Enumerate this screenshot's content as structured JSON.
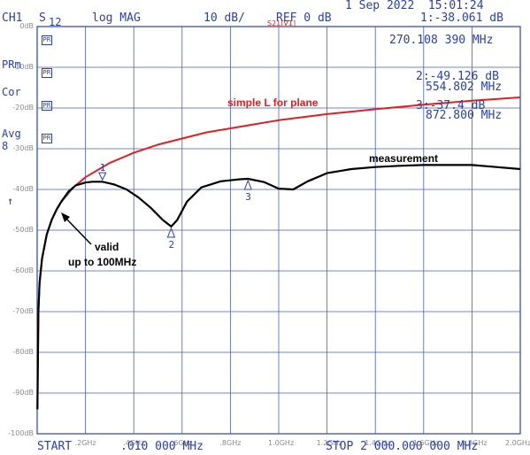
{
  "header": {
    "date": "1 Sep 2022  15:01:24",
    "channel": "CH1",
    "param": "S",
    "param_sub": "12",
    "format": "log MAG",
    "scale": "10 dB/",
    "ref": "REF 0 dB",
    "trace_tag": "S21[V1]",
    "marker1_readout": "1:-38.061 dB",
    "marker1_freq": "270.108 390 MHz",
    "marker2_readout": "2:-49.126 dB",
    "marker2_freq": "554.802 MHz",
    "marker3_readout": "3:-37.4 dB",
    "marker3_freq": "872.800 MHz",
    "start": "START",
    "start_value": ".010 000 MHz",
    "stop": "STOP 2 000.000 000 MHz"
  },
  "sidebar": {
    "prm": "PRm",
    "cor": "Cor",
    "avg": "Avg",
    "avg_n": "8",
    "arrow": "↑"
  },
  "annotations": {
    "red_label": "simple L for plane",
    "black_label": "measurement",
    "valid_line1": "valid",
    "valid_line2": "up to 100MHz"
  },
  "chart_data": {
    "type": "line",
    "xlabel": "",
    "ylabel": "",
    "xlim": [
      0.01,
      2000
    ],
    "ylim": [
      -100,
      0
    ],
    "y_ticks": [
      "0dB",
      "-10dB",
      "-20dB",
      "-30dB",
      "-40dB",
      "-50dB",
      "-60dB",
      "-70dB",
      "-80dB",
      "-90dB",
      "-100dB"
    ],
    "x_ticks": [
      ".2GHz",
      ".4GHz",
      ".6GHz",
      ".8GHz",
      "1.0GHz",
      "1.2GHz",
      "1.4GHz",
      "1.6GHz",
      "1.8GHz",
      "2.0GHz"
    ],
    "grid": true,
    "series": [
      {
        "name": "simple L for plane",
        "color": "#e02020",
        "x": [
          1,
          5,
          10,
          20,
          40,
          60,
          80,
          100,
          150,
          200,
          300,
          400,
          500,
          600,
          700,
          800,
          900,
          1000,
          1200,
          1400,
          1600,
          1800,
          2000
        ],
        "y": [
          -94,
          -70,
          -63,
          -57,
          -51,
          -47.5,
          -45,
          -43,
          -39.5,
          -37,
          -33.5,
          -31,
          -29,
          -27.5,
          -26,
          -25,
          -24,
          -23,
          -21.5,
          -20.3,
          -19.2,
          -18.2,
          -17.4
        ]
      },
      {
        "name": "measurement",
        "color": "#000000",
        "x": [
          1,
          5,
          10,
          20,
          40,
          60,
          80,
          100,
          130,
          160,
          200,
          230,
          270,
          320,
          370,
          420,
          470,
          520,
          555,
          580,
          620,
          680,
          760,
          840,
          873,
          940,
          1000,
          1060,
          1120,
          1200,
          1300,
          1400,
          1500,
          1600,
          1700,
          1800,
          1900,
          2000
        ],
        "y": [
          -94,
          -70,
          -63,
          -57,
          -51,
          -47.5,
          -45,
          -43,
          -40.5,
          -39,
          -38.3,
          -38.1,
          -38.1,
          -38.8,
          -40,
          -42,
          -44.5,
          -47.5,
          -49.1,
          -47.5,
          -43,
          -39.5,
          -38,
          -37.5,
          -37.4,
          -38.2,
          -39.8,
          -40,
          -38,
          -36,
          -35,
          -34.5,
          -34.2,
          -34,
          -34,
          -34,
          -34.5,
          -35
        ]
      }
    ],
    "markers": [
      {
        "label": "1",
        "x": 270.108,
        "y": -38.061
      },
      {
        "label": "2",
        "x": 554.802,
        "y": -49.126
      },
      {
        "label": "3",
        "x": 872.8,
        "y": -37.4
      }
    ]
  }
}
